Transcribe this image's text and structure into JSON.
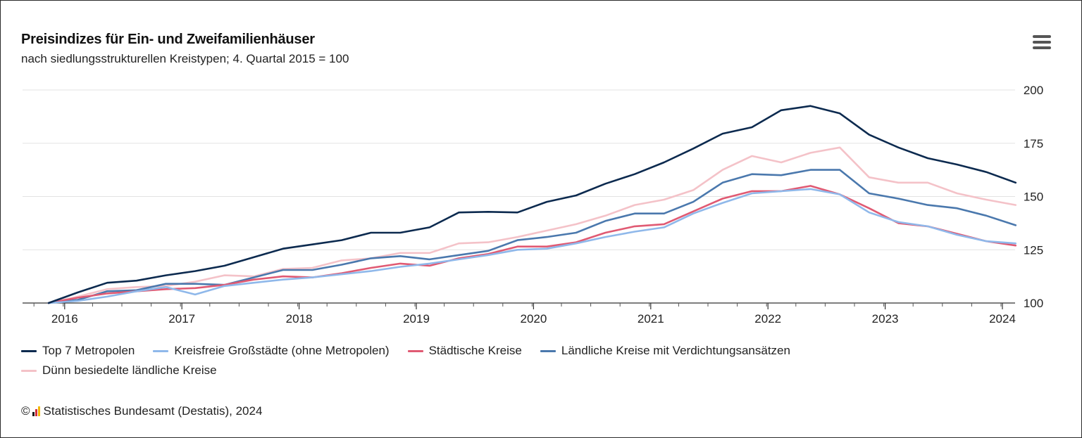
{
  "header": {
    "title": "Preisindizes für Ein- und Zweifamilienhäuser",
    "subtitle": "nach siedlungsstrukturellen Kreistypen; 4. Quartal 2015 = 100",
    "menu_icon": "hamburger-menu-icon"
  },
  "footer": {
    "copyright": "©",
    "credit": "Statistisches Bundesamt (Destatis), 2024",
    "logo_colors": [
      "#1a1a1a",
      "#d12c3a",
      "#f2b705"
    ]
  },
  "chart_data": {
    "type": "line",
    "title": "Preisindizes für Ein- und Zweifamilienhäuser",
    "subtitle": "nach siedlungsstrukturellen Kreistypen; 4. Quartal 2015 = 100",
    "xlabel": "",
    "ylabel": "",
    "x": [
      "2015-Q4",
      "2016-Q1",
      "2016-Q2",
      "2016-Q3",
      "2016-Q4",
      "2017-Q1",
      "2017-Q2",
      "2017-Q3",
      "2017-Q4",
      "2018-Q1",
      "2018-Q2",
      "2018-Q3",
      "2018-Q4",
      "2019-Q1",
      "2019-Q2",
      "2019-Q3",
      "2019-Q4",
      "2020-Q1",
      "2020-Q2",
      "2020-Q3",
      "2020-Q4",
      "2021-Q1",
      "2021-Q2",
      "2021-Q3",
      "2021-Q4",
      "2022-Q1",
      "2022-Q2",
      "2022-Q3",
      "2022-Q4",
      "2023-Q1",
      "2023-Q2",
      "2023-Q3",
      "2023-Q4",
      "2024-Q1"
    ],
    "xticks": [
      "2016",
      "2017",
      "2018",
      "2019",
      "2020",
      "2021",
      "2022",
      "2023",
      "2024"
    ],
    "yticks": [
      100,
      125,
      150,
      175,
      200
    ],
    "ylim": [
      100,
      200
    ],
    "axis_side_y": "right",
    "grid": true,
    "legend_position": "bottom",
    "series": [
      {
        "name": "Top 7 Metropolen",
        "color": "#0c2a4f",
        "values": [
          100,
          105,
          109.5,
          110.5,
          113,
          115,
          117.5,
          121.5,
          125.5,
          127.5,
          129.5,
          133,
          133,
          135.5,
          142.5,
          142.8,
          142.5,
          147.5,
          150.5,
          156,
          160.5,
          166,
          172.5,
          179.5,
          182.5,
          190.5,
          192.5,
          189,
          179,
          173,
          168,
          165,
          161.5,
          156.5
        ]
      },
      {
        "name": "Kreisfreie Großstädte (ohne Metropolen)",
        "color": "#8fb8ea",
        "values": [
          100,
          101,
          103,
          105.5,
          107.5,
          104,
          108,
          109.5,
          111,
          112,
          113.5,
          115,
          117,
          118.5,
          120.5,
          122.5,
          125,
          125.5,
          128,
          131,
          133.5,
          135.5,
          142,
          147,
          151.5,
          152.5,
          153.5,
          151,
          142.5,
          138,
          136,
          132,
          129,
          128
        ]
      },
      {
        "name": "Städtische Kreise",
        "color": "#e05a73",
        "values": [
          100,
          102.5,
          104.5,
          105.5,
          106.5,
          107,
          108.5,
          111,
          112.5,
          112,
          114,
          116.5,
          118.5,
          117.5,
          121,
          123,
          126.5,
          126.5,
          128.5,
          133,
          136,
          137,
          143,
          149,
          152.5,
          152.5,
          155,
          151,
          144.5,
          137.5,
          136,
          132.5,
          129,
          127
        ]
      },
      {
        "name": "Ländliche Kreise mit Verdichtungsansätzen",
        "color": "#4a78ad",
        "values": [
          100,
          101.5,
          105.5,
          106,
          109,
          109,
          108.5,
          112,
          115.5,
          115.5,
          118,
          121,
          122,
          120.5,
          122.5,
          124.5,
          129.5,
          131,
          133,
          138.5,
          142,
          142,
          147.5,
          156.5,
          160.5,
          160,
          162.5,
          162.5,
          151.5,
          149,
          146,
          144.5,
          141,
          136.5
        ]
      },
      {
        "name": "Dünn besiedelte ländliche Kreise",
        "color": "#f4c2c8",
        "values": [
          100,
          103,
          106.5,
          107.5,
          108,
          110,
          113,
          112.5,
          116,
          116.5,
          120,
          121,
          123.5,
          123.5,
          128,
          128.5,
          131,
          134,
          137,
          141,
          146,
          148.5,
          153,
          162.5,
          169,
          166,
          170.5,
          173,
          159,
          156.5,
          156.5,
          151.5,
          148.5,
          146
        ]
      }
    ]
  }
}
